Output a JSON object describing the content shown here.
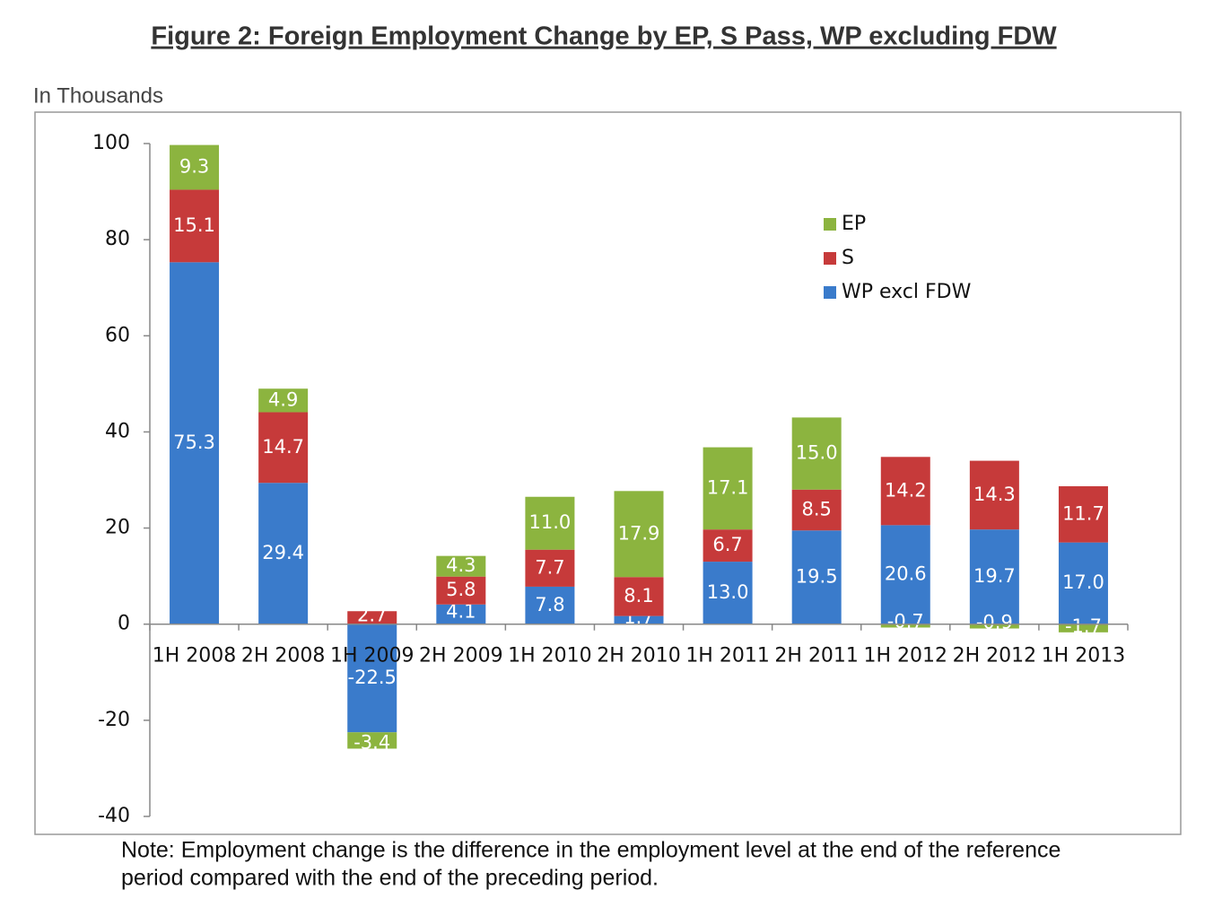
{
  "chart_data": {
    "type": "stacked_bar",
    "title": "Figure 2: Foreign Employment Change by EP, S Pass, WP excluding FDW",
    "ylabel": "In Thousands",
    "note": [
      "Note: Employment change is the difference in the employment level at the end of the reference",
      "period compared with the end of the preceding period."
    ],
    "categories": [
      "1H 2008",
      "2H 2008",
      "1H 2009",
      "2H 2009",
      "1H 2010",
      "2H 2010",
      "1H 2011",
      "2H 2011",
      "1H 2012",
      "2H 2012",
      "1H 2013"
    ],
    "series": [
      {
        "name": "WP excl FDW",
        "color": "#3a7bcb",
        "values": [
          75.3,
          29.4,
          -22.5,
          4.1,
          7.8,
          1.7,
          13.0,
          19.5,
          20.6,
          19.7,
          17.0
        ],
        "value_labels": [
          "75.3",
          "29.4",
          "-22.5",
          "4.1",
          "7.8",
          "1.7",
          "13.0",
          "19.5",
          "20.6",
          "19.7",
          "17.0"
        ]
      },
      {
        "name": "S",
        "color": "#c63a3a",
        "values": [
          15.1,
          14.7,
          2.7,
          5.8,
          7.7,
          8.1,
          6.7,
          8.5,
          14.2,
          14.3,
          11.7
        ],
        "value_labels": [
          "15.1",
          "14.7",
          "2.7",
          "5.8",
          "7.7",
          "8.1",
          "6.7",
          "8.5",
          "14.2",
          "14.3",
          "11.7"
        ]
      },
      {
        "name": "EP",
        "color": "#8cb43f",
        "values": [
          9.3,
          4.9,
          -3.4,
          4.3,
          11.0,
          17.9,
          17.1,
          15.0,
          -0.7,
          -0.9,
          -1.7
        ],
        "value_labels": [
          "9.3",
          "4.9",
          "-3.4",
          "4.3",
          "11.0",
          "17.9",
          "17.1",
          "15.0",
          "-0.7",
          "-0.9",
          "-1.7"
        ]
      }
    ],
    "ylim": [
      -40,
      100
    ],
    "yticks": [
      -40,
      -20,
      0,
      20,
      40,
      60,
      80,
      100
    ],
    "legend": "upper right"
  }
}
